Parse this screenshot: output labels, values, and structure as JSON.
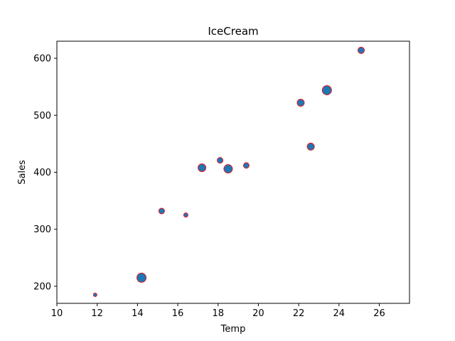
{
  "chart_data": {
    "type": "scatter",
    "title": "IceCream",
    "xlabel": "Temp",
    "ylabel": "Sales",
    "xlim": [
      10,
      27.5
    ],
    "ylim": [
      170,
      630
    ],
    "xticks": [
      10,
      12,
      14,
      16,
      18,
      20,
      22,
      24,
      26
    ],
    "yticks": [
      200,
      300,
      400,
      500,
      600
    ],
    "grid": false,
    "legend": "none",
    "marker_face_color": "#1f77b4",
    "marker_edge_color": "#e8141c",
    "series": [
      {
        "points": [
          {
            "x": 11.9,
            "y": 185,
            "size": 2.5
          },
          {
            "x": 14.2,
            "y": 215,
            "size": 6.5
          },
          {
            "x": 15.2,
            "y": 332,
            "size": 4
          },
          {
            "x": 16.4,
            "y": 325,
            "size": 3
          },
          {
            "x": 17.2,
            "y": 408,
            "size": 5.5
          },
          {
            "x": 18.1,
            "y": 421,
            "size": 4
          },
          {
            "x": 18.5,
            "y": 406,
            "size": 6
          },
          {
            "x": 19.4,
            "y": 412,
            "size": 4
          },
          {
            "x": 22.1,
            "y": 522,
            "size": 5
          },
          {
            "x": 22.6,
            "y": 445,
            "size": 5
          },
          {
            "x": 23.4,
            "y": 544,
            "size": 6.5
          },
          {
            "x": 25.1,
            "y": 614,
            "size": 4.5
          }
        ]
      }
    ]
  }
}
